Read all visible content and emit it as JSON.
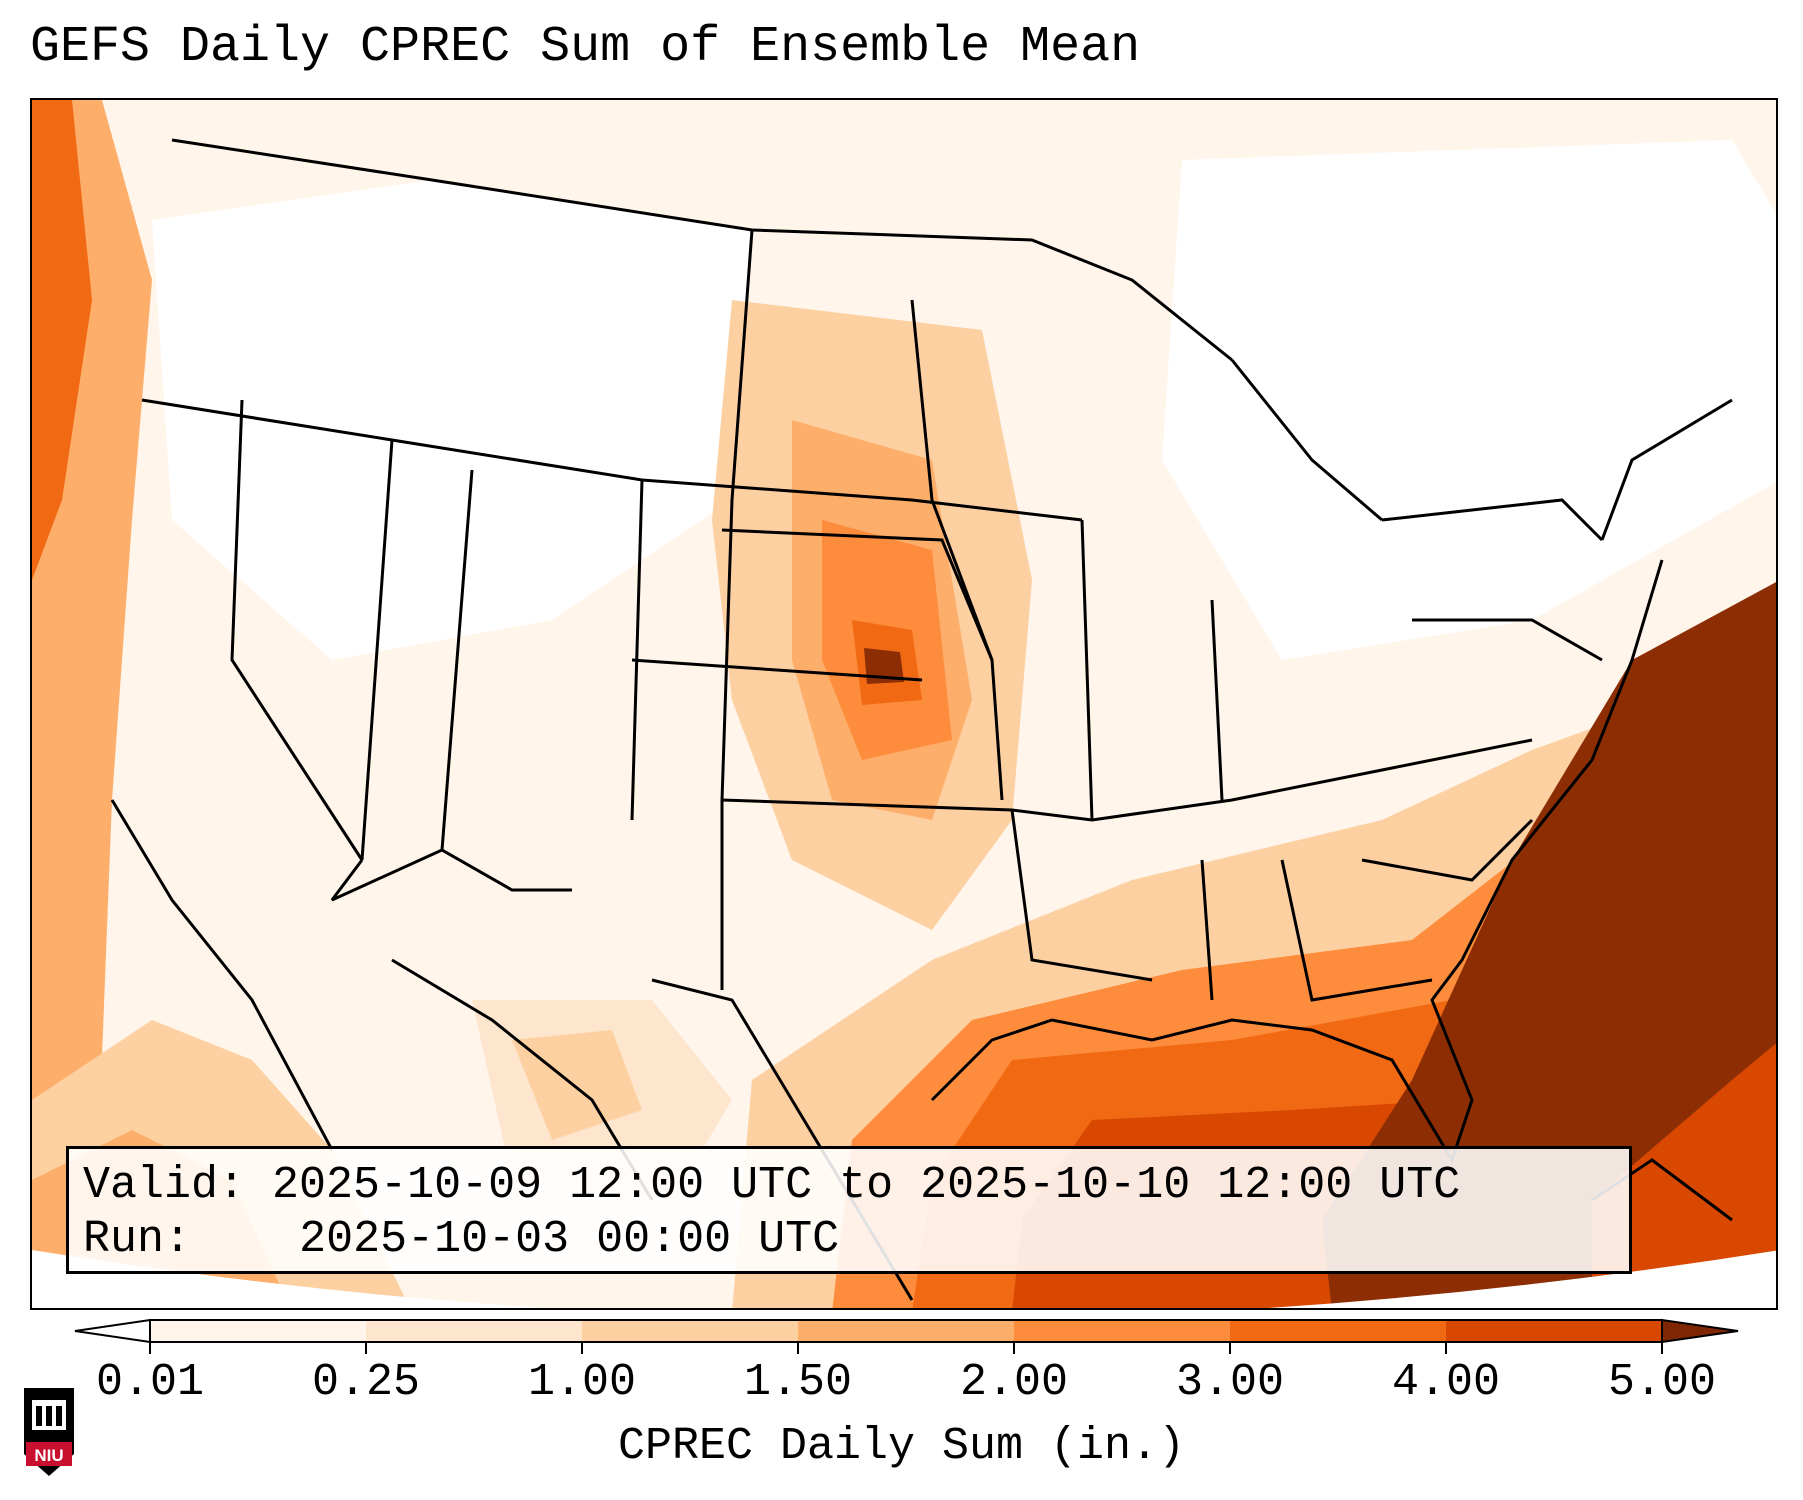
{
  "title": "GEFS Daily CPREC Sum of Ensemble Mean",
  "info": {
    "valid_label": "Valid:",
    "valid_value": "2025-10-09 12:00 UTC to 2025-10-10 12:00 UTC",
    "run_label": "Run:",
    "run_value": "2025-10-03 00:00 UTC"
  },
  "colorbar": {
    "label": "CPREC Daily Sum (in.)",
    "ticks": [
      "0.01",
      "0.25",
      "1.00",
      "1.50",
      "2.00",
      "3.00",
      "4.00",
      "5.00"
    ],
    "colors": [
      "#fff5eb",
      "#fee6ce",
      "#fdd0a2",
      "#fdae6b",
      "#fd8d3c",
      "#f16913",
      "#d94801",
      "#8c2d04"
    ],
    "under_color": "#ffffff",
    "over_color": "#7f2704"
  },
  "logo": {
    "text": "NIU",
    "color": "#c8102e"
  }
}
